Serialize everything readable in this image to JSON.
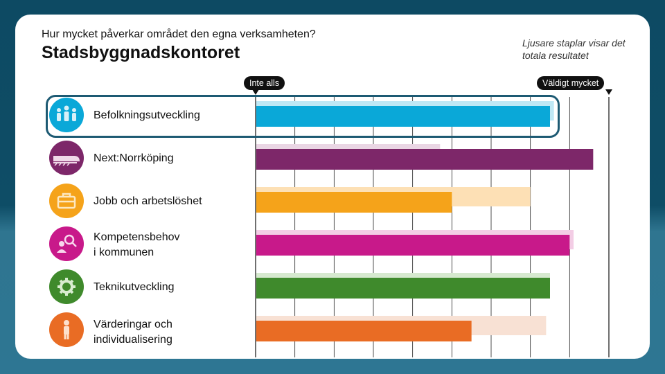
{
  "subtitle": "Hur mycket påverkar området den egna verksamheten?",
  "title": "Stadsbyggnadskontoret",
  "note": "Ljusare staplar visar det totala resultatet",
  "scale": {
    "min_label": "Inte alls",
    "max_label": "Väldigt mycket"
  },
  "chart_data": {
    "type": "bar",
    "orientation": "horizontal",
    "xlim": [
      0,
      9
    ],
    "grid": true,
    "categories": [
      "Befolkningsutveckling",
      "Next:Norrköping",
      "Jobb och arbetslöshet",
      "Kompetensbehov\ni kommunen",
      "Teknikutveckling",
      "Värderingar och\nindividualisering"
    ],
    "series": [
      {
        "name": "Stadsbyggnadskontoret",
        "values": [
          7.5,
          8.6,
          5.0,
          8.0,
          7.5,
          5.5
        ]
      },
      {
        "name": "Totalt resultat",
        "values": [
          7.6,
          4.7,
          7.0,
          8.1,
          7.5,
          7.4
        ]
      }
    ],
    "colors": {
      "dark": [
        "#0aa8d8",
        "#7d2769",
        "#f5a31a",
        "#c8198a",
        "#3f8a2c",
        "#e96c24"
      ],
      "light": [
        "#bfe8f5",
        "#ead6e4",
        "#fde0b5",
        "#f3cde5",
        "#d6e9cf",
        "#f8e1d4"
      ]
    },
    "icons": [
      "people-icon",
      "train-icon",
      "briefcase-icon",
      "person-search-icon",
      "gear-icon",
      "person-icon"
    ],
    "highlighted_category": "Befolkningsutveckling"
  }
}
